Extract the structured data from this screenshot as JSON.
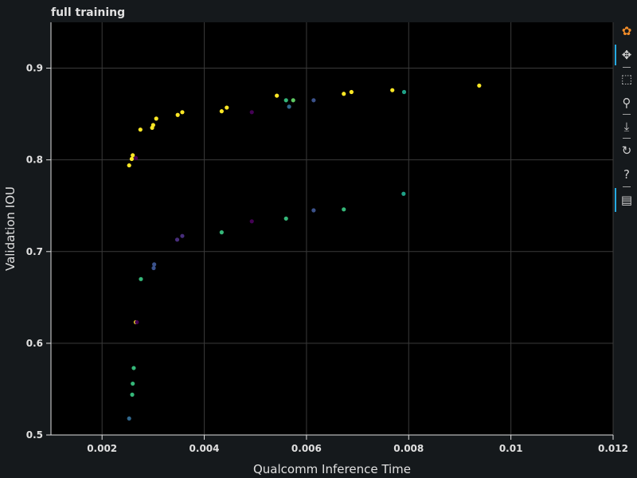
{
  "chart_data": {
    "type": "scatter",
    "title": "full training",
    "xlabel": "Qualcomm Inference Time",
    "ylabel": "Validation IOU",
    "xlim": [
      0.001,
      0.012
    ],
    "ylim": [
      0.5,
      0.95
    ],
    "xticks": [
      0.002,
      0.004,
      0.006,
      0.008,
      0.01,
      0.012
    ],
    "xtick_labels": [
      "0.002",
      "0.004",
      "0.006",
      "0.008",
      "0.01",
      "0.012"
    ],
    "yticks": [
      0.5,
      0.6,
      0.7,
      0.8,
      0.9
    ],
    "ytick_labels": [
      "0.5",
      "0.6",
      "0.7",
      "0.8",
      "0.9"
    ],
    "grid": true,
    "points": [
      {
        "x": 0.00253,
        "y": 0.794,
        "color": "#fde725"
      },
      {
        "x": 0.00258,
        "y": 0.801,
        "color": "#fde725"
      },
      {
        "x": 0.0026,
        "y": 0.805,
        "color": "#fde725"
      },
      {
        "x": 0.00266,
        "y": 0.802,
        "color": "#440154"
      },
      {
        "x": 0.00275,
        "y": 0.833,
        "color": "#fde725"
      },
      {
        "x": 0.00298,
        "y": 0.835,
        "color": "#fde725"
      },
      {
        "x": 0.003,
        "y": 0.838,
        "color": "#fde725"
      },
      {
        "x": 0.00306,
        "y": 0.845,
        "color": "#fde725"
      },
      {
        "x": 0.00348,
        "y": 0.849,
        "color": "#fde725"
      },
      {
        "x": 0.00357,
        "y": 0.852,
        "color": "#fde725"
      },
      {
        "x": 0.00434,
        "y": 0.853,
        "color": "#fde725"
      },
      {
        "x": 0.00444,
        "y": 0.857,
        "color": "#fde725"
      },
      {
        "x": 0.00493,
        "y": 0.852,
        "color": "#440154"
      },
      {
        "x": 0.00542,
        "y": 0.87,
        "color": "#fde725"
      },
      {
        "x": 0.0056,
        "y": 0.865,
        "color": "#35b779"
      },
      {
        "x": 0.00566,
        "y": 0.858,
        "color": "#31688e"
      },
      {
        "x": 0.00574,
        "y": 0.865,
        "color": "#5ec962"
      },
      {
        "x": 0.00614,
        "y": 0.865,
        "color": "#3b528b"
      },
      {
        "x": 0.00673,
        "y": 0.872,
        "color": "#fde725"
      },
      {
        "x": 0.00688,
        "y": 0.874,
        "color": "#fde725"
      },
      {
        "x": 0.00768,
        "y": 0.876,
        "color": "#fde725"
      },
      {
        "x": 0.00791,
        "y": 0.874,
        "color": "#1fa187"
      },
      {
        "x": 0.00938,
        "y": 0.881,
        "color": "#fde725"
      },
      {
        "x": 0.00301,
        "y": 0.682,
        "color": "#3b528b"
      },
      {
        "x": 0.00302,
        "y": 0.686,
        "color": "#3b528b"
      },
      {
        "x": 0.00276,
        "y": 0.67,
        "color": "#35b779"
      },
      {
        "x": 0.00347,
        "y": 0.713,
        "color": "#472d7b"
      },
      {
        "x": 0.00357,
        "y": 0.717,
        "color": "#472d7b"
      },
      {
        "x": 0.00434,
        "y": 0.721,
        "color": "#35b779"
      },
      {
        "x": 0.00493,
        "y": 0.733,
        "color": "#440154"
      },
      {
        "x": 0.0056,
        "y": 0.736,
        "color": "#35b779"
      },
      {
        "x": 0.00614,
        "y": 0.745,
        "color": "#3b528b"
      },
      {
        "x": 0.00673,
        "y": 0.746,
        "color": "#35b779"
      },
      {
        "x": 0.0079,
        "y": 0.763,
        "color": "#1fa187"
      },
      {
        "x": 0.00266,
        "y": 0.623,
        "color": "#fde725"
      },
      {
        "x": 0.00268,
        "y": 0.623,
        "color": "#440154"
      },
      {
        "x": 0.00262,
        "y": 0.573,
        "color": "#35b779"
      },
      {
        "x": 0.0026,
        "y": 0.556,
        "color": "#35b779"
      },
      {
        "x": 0.00259,
        "y": 0.544,
        "color": "#35b779"
      },
      {
        "x": 0.00253,
        "y": 0.518,
        "color": "#31688e"
      }
    ]
  },
  "toolbar": {
    "items": [
      {
        "name": "bokeh-logo-icon",
        "glyph": "✿",
        "color": "#f28c28"
      },
      {
        "name": "pan-tool-icon",
        "glyph": "✥",
        "color": "#cfcfcf"
      },
      {
        "name": "box-zoom-tool-icon",
        "glyph": "⬚",
        "color": "#cfcfcf"
      },
      {
        "name": "wheel-zoom-tool-icon",
        "glyph": "⚲",
        "color": "#cfcfcf"
      },
      {
        "name": "save-tool-icon",
        "glyph": "⤓",
        "color": "#cfcfcf"
      },
      {
        "name": "reset-tool-icon",
        "glyph": "↻",
        "color": "#cfcfcf"
      },
      {
        "name": "help-tool-icon",
        "glyph": "?",
        "color": "#cfcfcf"
      },
      {
        "name": "hover-tool-icon",
        "glyph": "▤",
        "color": "#cfcfcf"
      }
    ]
  }
}
